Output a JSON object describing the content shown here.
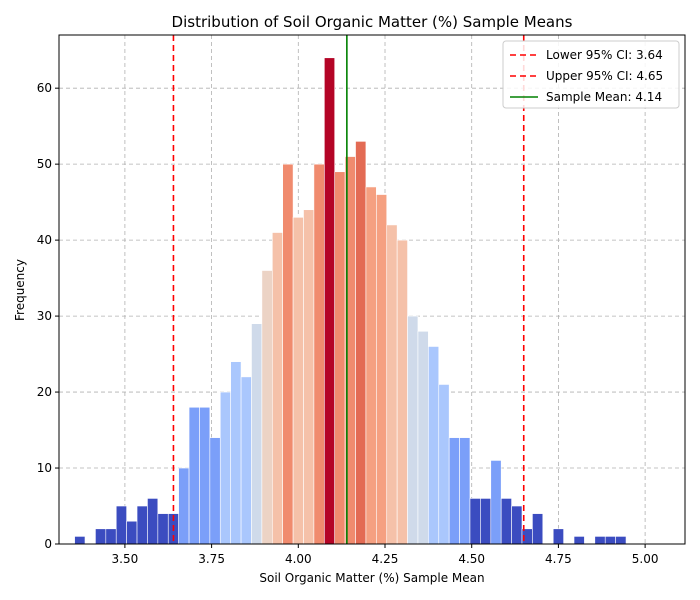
{
  "chart_data": {
    "type": "bar",
    "title": "Distribution of Soil Organic Matter (%) Sample Means",
    "xlabel": "Soil Organic Matter (%) Sample Mean",
    "ylabel": "Frequency",
    "xlim": [
      3.31,
      5.115
    ],
    "ylim": [
      0,
      67
    ],
    "xticks": [
      3.5,
      3.75,
      4.0,
      4.25,
      4.5,
      4.75,
      5.0
    ],
    "xtick_labels": [
      "3.50",
      "3.75",
      "4.00",
      "4.25",
      "4.50",
      "4.75",
      "5.00"
    ],
    "yticks": [
      0,
      10,
      20,
      30,
      40,
      50,
      60
    ],
    "ytick_labels": [
      "0",
      "10",
      "20",
      "30",
      "40",
      "50",
      "60"
    ],
    "grid": true,
    "bins": [
      {
        "x": 3.355,
        "y": 1,
        "color": "#3b4cc0"
      },
      {
        "x": 3.415,
        "y": 2,
        "color": "#3b4cc0"
      },
      {
        "x": 3.445,
        "y": 2,
        "color": "#3b4cc0"
      },
      {
        "x": 3.475,
        "y": 5,
        "color": "#3b4cc0"
      },
      {
        "x": 3.505,
        "y": 3,
        "color": "#3b4cc0"
      },
      {
        "x": 3.535,
        "y": 5,
        "color": "#3b4cc0"
      },
      {
        "x": 3.565,
        "y": 6,
        "color": "#3b4cc0"
      },
      {
        "x": 3.595,
        "y": 4,
        "color": "#3b4cc0"
      },
      {
        "x": 3.625,
        "y": 4,
        "color": "#3b4cc0"
      },
      {
        "x": 3.655,
        "y": 10,
        "color": "#7b9ff9"
      },
      {
        "x": 3.685,
        "y": 18,
        "color": "#7b9ff9"
      },
      {
        "x": 3.715,
        "y": 18,
        "color": "#7b9ff9"
      },
      {
        "x": 3.745,
        "y": 14,
        "color": "#7b9ff9"
      },
      {
        "x": 3.775,
        "y": 20,
        "color": "#aac7fd"
      },
      {
        "x": 3.805,
        "y": 24,
        "color": "#aac7fd"
      },
      {
        "x": 3.835,
        "y": 22,
        "color": "#aac7fd"
      },
      {
        "x": 3.865,
        "y": 29,
        "color": "#cfdaea"
      },
      {
        "x": 3.895,
        "y": 36,
        "color": "#ecd3c5"
      },
      {
        "x": 3.925,
        "y": 41,
        "color": "#f5c1a9"
      },
      {
        "x": 3.955,
        "y": 50,
        "color": "#f08b6e"
      },
      {
        "x": 3.985,
        "y": 43,
        "color": "#f5c1a9"
      },
      {
        "x": 4.015,
        "y": 44,
        "color": "#f5c1a9"
      },
      {
        "x": 4.045,
        "y": 50,
        "color": "#f08b6e"
      },
      {
        "x": 4.075,
        "y": 64,
        "color": "#b40426"
      },
      {
        "x": 4.105,
        "y": 49,
        "color": "#f08b6e"
      },
      {
        "x": 4.135,
        "y": 51,
        "color": "#f08b6e"
      },
      {
        "x": 4.165,
        "y": 53,
        "color": "#e36b54"
      },
      {
        "x": 4.195,
        "y": 47,
        "color": "#f5a081"
      },
      {
        "x": 4.225,
        "y": 46,
        "color": "#f5a081"
      },
      {
        "x": 4.255,
        "y": 42,
        "color": "#f5c1a9"
      },
      {
        "x": 4.285,
        "y": 40,
        "color": "#f5c1a9"
      },
      {
        "x": 4.315,
        "y": 30,
        "color": "#cfdaea"
      },
      {
        "x": 4.345,
        "y": 28,
        "color": "#cfdaea"
      },
      {
        "x": 4.375,
        "y": 26,
        "color": "#aac7fd"
      },
      {
        "x": 4.405,
        "y": 21,
        "color": "#aac7fd"
      },
      {
        "x": 4.435,
        "y": 14,
        "color": "#7b9ff9"
      },
      {
        "x": 4.465,
        "y": 14,
        "color": "#7b9ff9"
      },
      {
        "x": 4.495,
        "y": 6,
        "color": "#3b4cc0"
      },
      {
        "x": 4.525,
        "y": 6,
        "color": "#3b4cc0"
      },
      {
        "x": 4.555,
        "y": 11,
        "color": "#7b9ff9"
      },
      {
        "x": 4.585,
        "y": 6,
        "color": "#3b4cc0"
      },
      {
        "x": 4.615,
        "y": 5,
        "color": "#3b4cc0"
      },
      {
        "x": 4.645,
        "y": 2,
        "color": "#3b4cc0"
      },
      {
        "x": 4.675,
        "y": 4,
        "color": "#3b4cc0"
      },
      {
        "x": 4.735,
        "y": 2,
        "color": "#3b4cc0"
      },
      {
        "x": 4.795,
        "y": 1,
        "color": "#3b4cc0"
      },
      {
        "x": 4.855,
        "y": 1,
        "color": "#3b4cc0"
      },
      {
        "x": 4.885,
        "y": 1,
        "color": "#3b4cc0"
      },
      {
        "x": 4.915,
        "y": 1,
        "color": "#3b4cc0"
      }
    ],
    "bin_width": 0.03,
    "lines": [
      {
        "name": "Lower 95% CI: 3.64",
        "x": 3.64,
        "color": "#ff0000",
        "style": "dashed"
      },
      {
        "name": "Upper 95% CI: 4.65",
        "x": 4.65,
        "color": "#ff0000",
        "style": "dashed"
      },
      {
        "name": "Sample Mean: 4.14",
        "x": 4.14,
        "color": "#008000",
        "style": "solid"
      }
    ],
    "legend_position": "top-right"
  }
}
